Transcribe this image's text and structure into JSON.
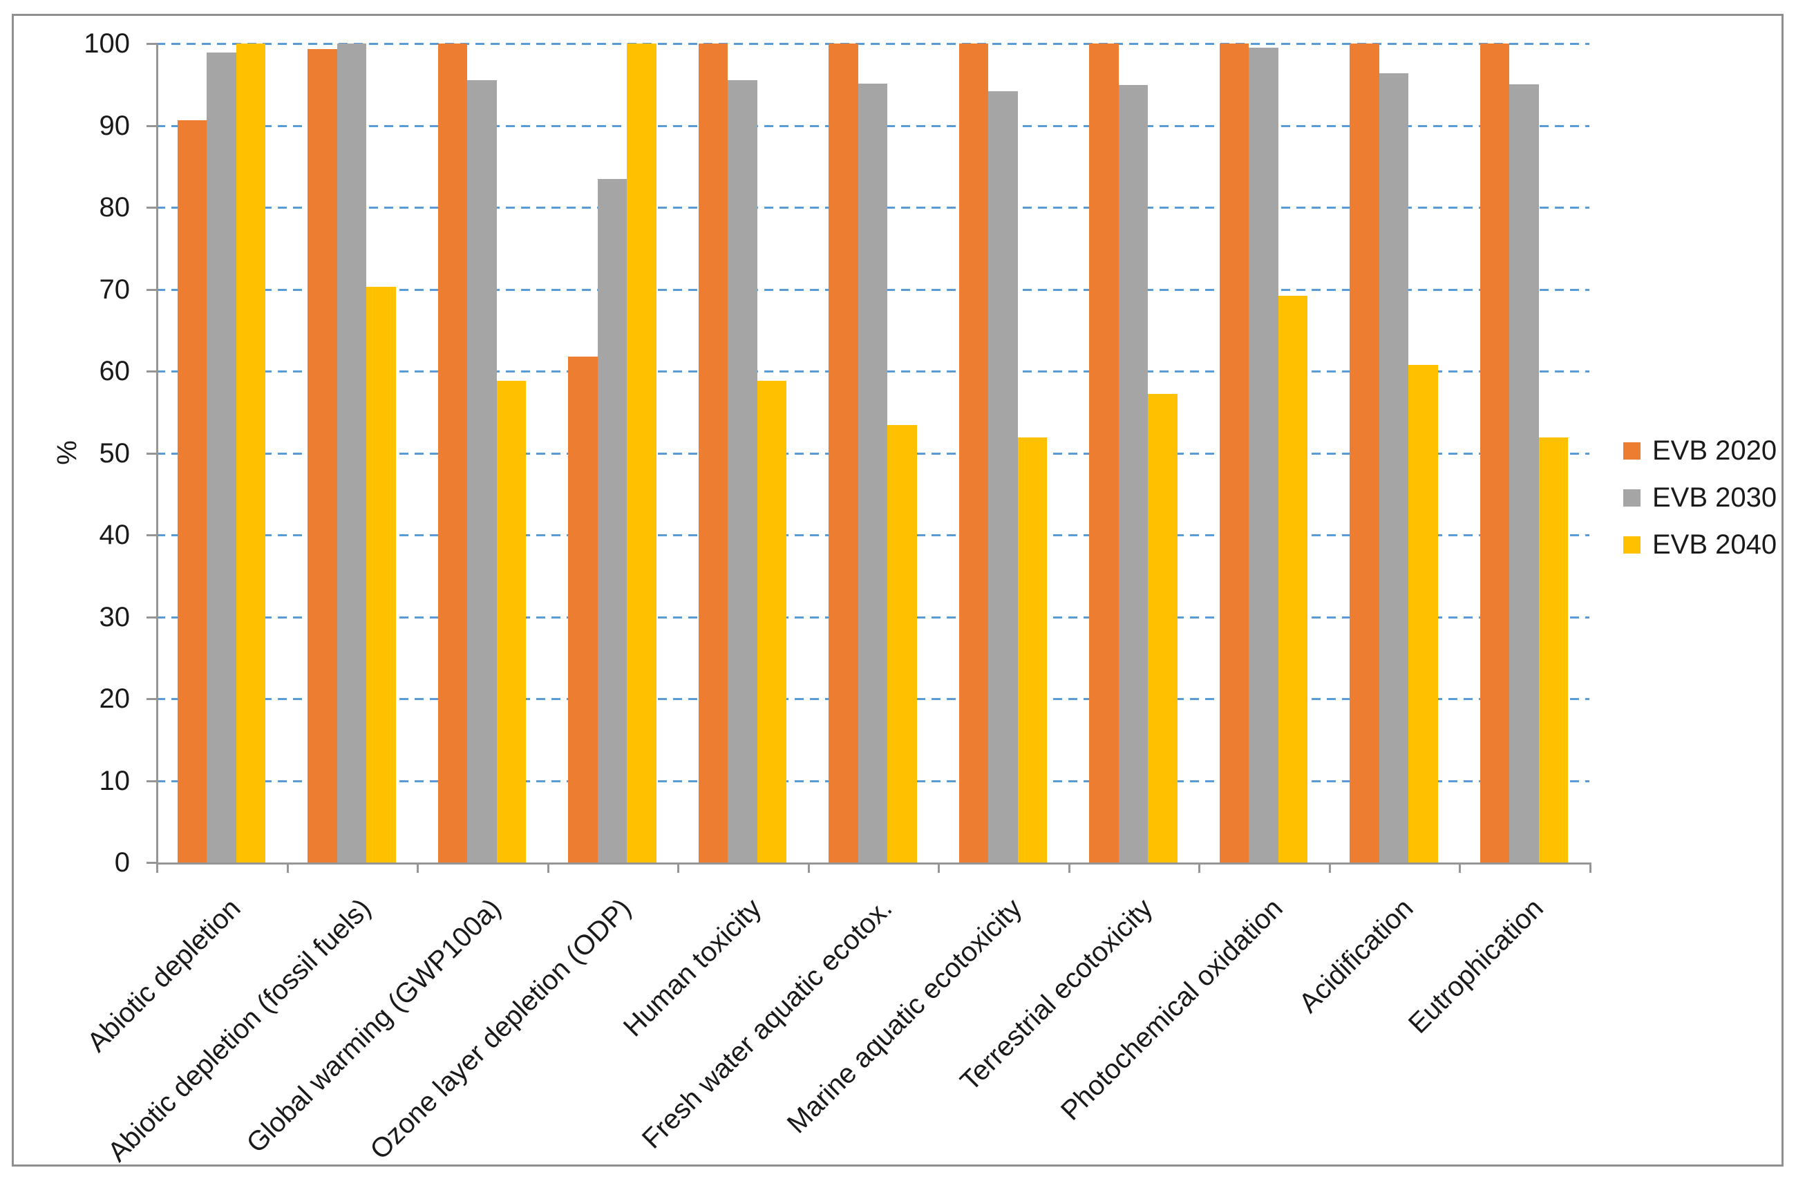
{
  "chart_data": {
    "type": "bar",
    "title": "",
    "xlabel": "",
    "ylabel": "%",
    "ylim": [
      0,
      100
    ],
    "y_ticks": [
      0,
      10,
      20,
      30,
      40,
      50,
      60,
      70,
      80,
      90,
      100
    ],
    "grid": "horizontal-dashed",
    "legend_position": "right",
    "categories": [
      "Abiotic depletion",
      "Abiotic depletion (fossil fuels)",
      "Global warming (GWP100a)",
      "Ozone layer depletion (ODP)",
      "Human toxicity",
      "Fresh water aquatic ecotox.",
      "Marine aquatic ecotoxicity",
      "Terrestrial ecotoxicity",
      "Photochemical oxidation",
      "Acidification",
      "Eutrophication"
    ],
    "series": [
      {
        "name": "EVB 2020",
        "color": "#ED7D31",
        "values": [
          90.6,
          99.3,
          100,
          61.8,
          100,
          100,
          100,
          100,
          100,
          100,
          100
        ]
      },
      {
        "name": "EVB 2030",
        "color": "#A5A5A5",
        "values": [
          98.9,
          100,
          95.5,
          83.5,
          95.5,
          95.1,
          94.2,
          94.9,
          99.5,
          96.4,
          95.0
        ]
      },
      {
        "name": "EVB 2040",
        "color": "#FFC000",
        "values": [
          100,
          70.3,
          58.8,
          100,
          58.8,
          53.4,
          51.9,
          57.2,
          69.2,
          60.8,
          51.9
        ]
      }
    ]
  },
  "colors": {
    "gridline": "#5B9BD5",
    "axis": "#969696",
    "frame_border": "#8F8F8F",
    "text": "#1A1A1A",
    "background": "#FFFFFF"
  }
}
